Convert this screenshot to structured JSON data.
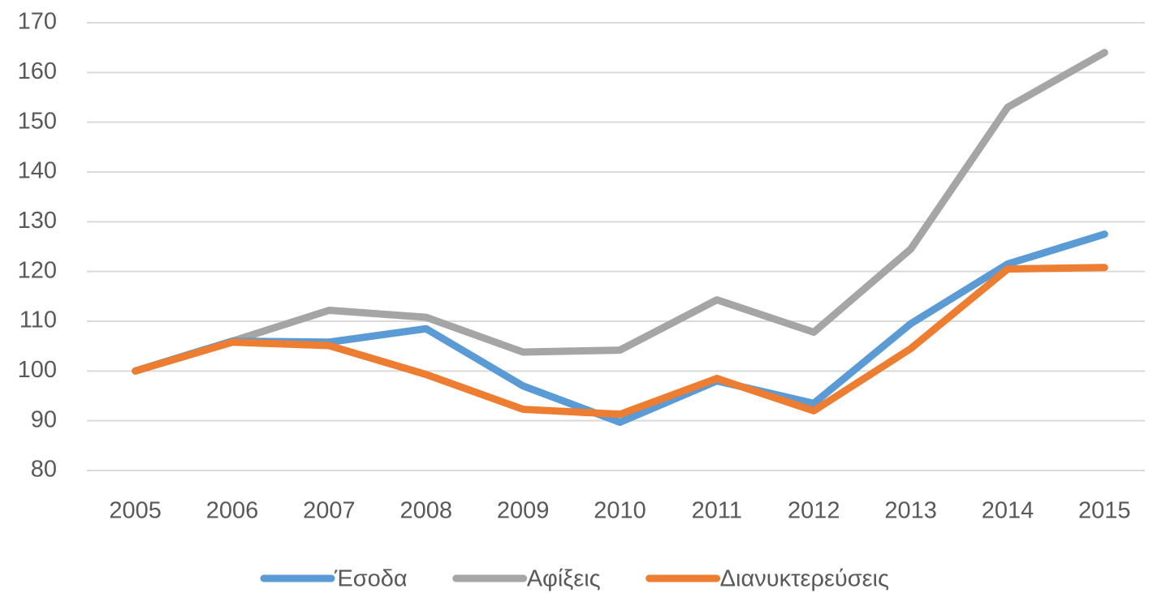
{
  "chart_data": {
    "type": "line",
    "categories": [
      "2005",
      "2006",
      "2007",
      "2008",
      "2009",
      "2010",
      "2011",
      "2012",
      "2013",
      "2014",
      "2015"
    ],
    "series": [
      {
        "name": "Έσοδα",
        "color": "#5b9bd5",
        "values": [
          100,
          106,
          105.8,
          108.5,
          97,
          89.7,
          98,
          93.5,
          109.5,
          121.5,
          127.5
        ]
      },
      {
        "name": "Αφίξεις",
        "color": "#a5a5a5",
        "values": [
          100,
          106,
          112.2,
          110.8,
          103.8,
          104.2,
          114.3,
          107.8,
          124.5,
          153,
          164
        ]
      },
      {
        "name": "Διανυκτερεύσεις",
        "color": "#ed7d31",
        "values": [
          100,
          105.8,
          105.1,
          99.3,
          92.3,
          91.3,
          98.5,
          92,
          104.5,
          120.5,
          120.8
        ]
      }
    ],
    "ylim": [
      80,
      170
    ],
    "yticks": [
      80,
      90,
      100,
      110,
      120,
      130,
      140,
      150,
      160,
      170
    ],
    "grid": true,
    "legend": "bottom"
  }
}
